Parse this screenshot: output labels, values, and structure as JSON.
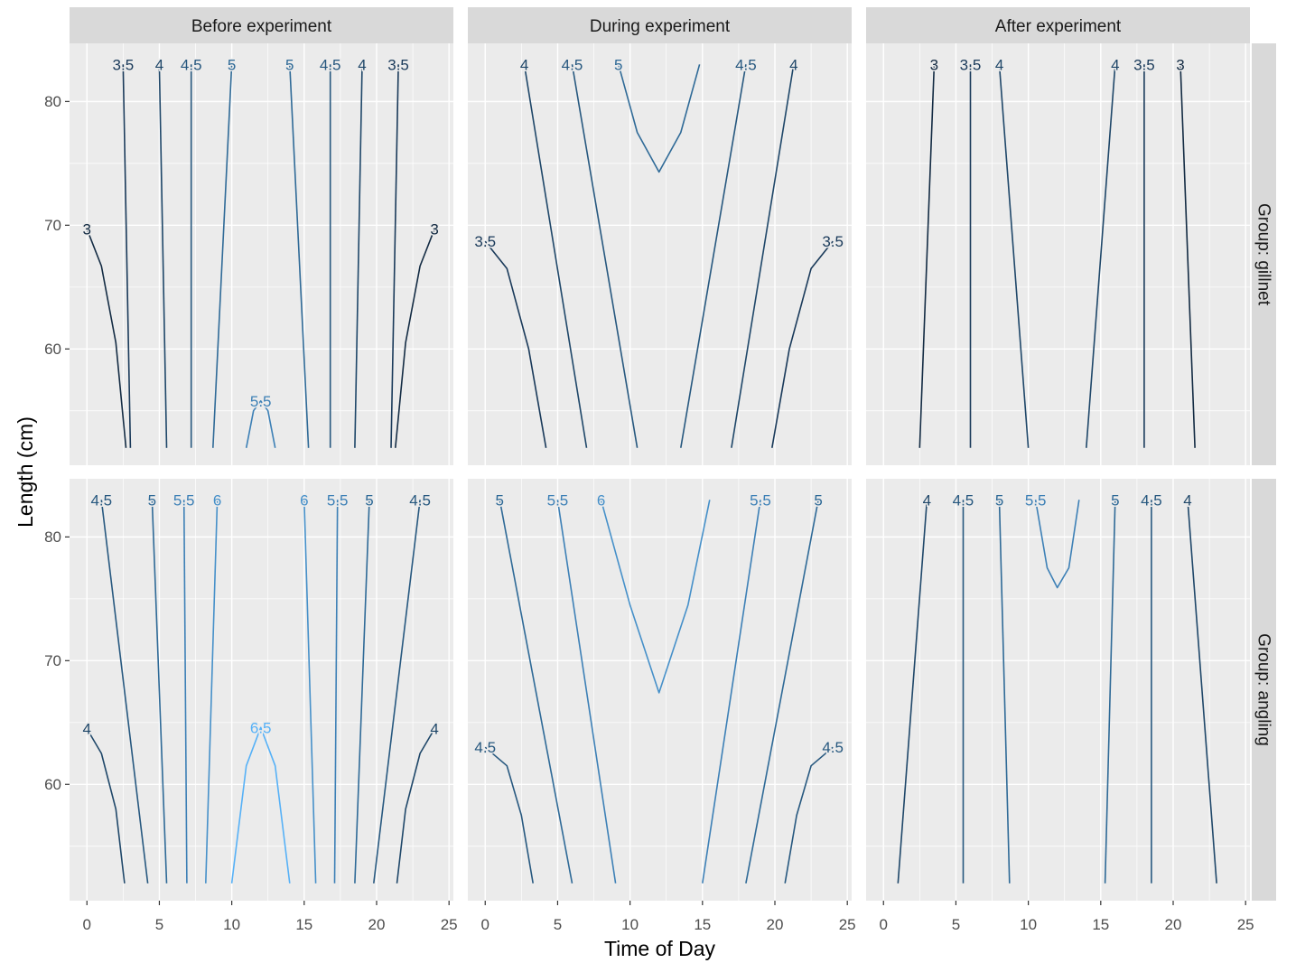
{
  "chart_data": {
    "type": "contour",
    "xlabel": "Time of Day",
    "ylabel": "Length (cm)",
    "x_ticks": [
      0,
      5,
      10,
      15,
      20,
      25
    ],
    "y_ticks": [
      60,
      70,
      80
    ],
    "xlim": [
      -1.2,
      25.3
    ],
    "ylim": [
      50.6,
      84.7
    ],
    "length_range": [
      52,
      83
    ],
    "columns": [
      "Before experiment",
      "During experiment",
      "After experiment"
    ],
    "rows": [
      "Group: gillnet",
      "Group: angling"
    ],
    "level_colors": {
      "3": "#132B43",
      "3.5": "#1a3a5a",
      "4": "#1f4769",
      "4.5": "#27587f",
      "5": "#2f6a97",
      "5.5": "#3d80b6",
      "6": "#4690c9",
      "6.5": "#56B1F7"
    },
    "panels": [
      {
        "row": 0,
        "col": 0,
        "contours": [
          {
            "level": "3",
            "label": "3",
            "points": [
              [
                0,
                69.7
              ],
              [
                1,
                66.7
              ],
              [
                2,
                60.5
              ],
              [
                2.7,
                52
              ]
            ]
          },
          {
            "level": "3",
            "label": "3",
            "points": [
              [
                24,
                69.7
              ],
              [
                23,
                66.7
              ],
              [
                22,
                60.5
              ],
              [
                21.3,
                52
              ]
            ]
          },
          {
            "level": "3.5",
            "label": "3.5",
            "points": [
              [
                2.5,
                83
              ],
              [
                3,
                52
              ]
            ]
          },
          {
            "level": "3.5",
            "label": "3.5",
            "points": [
              [
                21.5,
                83
              ],
              [
                21,
                52
              ]
            ]
          },
          {
            "level": "4",
            "label": "4",
            "points": [
              [
                5,
                83
              ],
              [
                5.5,
                52
              ]
            ]
          },
          {
            "level": "4",
            "label": "4",
            "points": [
              [
                19,
                83
              ],
              [
                18.5,
                52
              ]
            ]
          },
          {
            "level": "4.5",
            "label": "4.5",
            "points": [
              [
                7.2,
                83
              ],
              [
                7.2,
                52
              ]
            ]
          },
          {
            "level": "4.5",
            "label": "4.5",
            "points": [
              [
                16.8,
                83
              ],
              [
                16.8,
                52
              ]
            ]
          },
          {
            "level": "5",
            "label": "5",
            "points": [
              [
                10,
                83
              ],
              [
                8.7,
                52
              ]
            ]
          },
          {
            "level": "5",
            "label": "5",
            "points": [
              [
                14,
                83
              ],
              [
                15.3,
                52
              ]
            ]
          },
          {
            "level": "5.5",
            "label": "5.5",
            "points": [
              [
                11,
                52
              ],
              [
                11.5,
                55
              ],
              [
                12,
                55.8
              ],
              [
                12.5,
                55
              ],
              [
                13,
                52
              ]
            ]
          }
        ]
      },
      {
        "row": 0,
        "col": 1,
        "contours": [
          {
            "level": "3.5",
            "label": "3.5",
            "points": [
              [
                0,
                68.7
              ],
              [
                1.5,
                66.5
              ],
              [
                3,
                60
              ],
              [
                4.2,
                52
              ]
            ]
          },
          {
            "level": "3.5",
            "label": "3.5",
            "points": [
              [
                24,
                68.7
              ],
              [
                22.5,
                66.5
              ],
              [
                21,
                60
              ],
              [
                19.8,
                52
              ]
            ]
          },
          {
            "level": "4",
            "label": "4",
            "points": [
              [
                2.7,
                83
              ],
              [
                7,
                52
              ]
            ]
          },
          {
            "level": "4",
            "label": "4",
            "points": [
              [
                21.3,
                83
              ],
              [
                17,
                52
              ]
            ]
          },
          {
            "level": "4.5",
            "label": "4.5",
            "points": [
              [
                6,
                83
              ],
              [
                10.5,
                52
              ]
            ]
          },
          {
            "level": "4.5",
            "label": "4.5",
            "points": [
              [
                18,
                83
              ],
              [
                13.5,
                52
              ]
            ]
          },
          {
            "level": "5",
            "label": "5",
            "points": [
              [
                9.2,
                83
              ],
              [
                10.5,
                77.5
              ],
              [
                12,
                74.3
              ],
              [
                13.5,
                77.5
              ],
              [
                14.8,
                83
              ]
            ]
          }
        ]
      },
      {
        "row": 0,
        "col": 2,
        "contours": [
          {
            "level": "3",
            "label": "3",
            "points": [
              [
                3.5,
                83
              ],
              [
                2.5,
                52
              ]
            ]
          },
          {
            "level": "3",
            "label": "3",
            "points": [
              [
                20.5,
                83
              ],
              [
                21.5,
                52
              ]
            ]
          },
          {
            "level": "3.5",
            "label": "3.5",
            "points": [
              [
                6,
                83
              ],
              [
                6,
                52
              ]
            ]
          },
          {
            "level": "3.5",
            "label": "3.5",
            "points": [
              [
                18,
                83
              ],
              [
                18,
                52
              ]
            ]
          },
          {
            "level": "4",
            "label": "4",
            "points": [
              [
                8,
                83
              ],
              [
                10,
                52
              ]
            ]
          },
          {
            "level": "4",
            "label": "4",
            "points": [
              [
                16,
                83
              ],
              [
                14,
                52
              ]
            ]
          }
        ]
      },
      {
        "row": 1,
        "col": 0,
        "contours": [
          {
            "level": "4",
            "label": "4",
            "points": [
              [
                0,
                64.5
              ],
              [
                1,
                62.5
              ],
              [
                2,
                58
              ],
              [
                2.6,
                52
              ]
            ]
          },
          {
            "level": "4",
            "label": "4",
            "points": [
              [
                24,
                64.5
              ],
              [
                23,
                62.5
              ],
              [
                22,
                58
              ],
              [
                21.4,
                52
              ]
            ]
          },
          {
            "level": "4.5",
            "label": "4.5",
            "points": [
              [
                1,
                83
              ],
              [
                4.2,
                52
              ]
            ]
          },
          {
            "level": "4.5",
            "label": "4.5",
            "points": [
              [
                23,
                83
              ],
              [
                19.8,
                52
              ]
            ]
          },
          {
            "level": "5",
            "label": "5",
            "points": [
              [
                4.5,
                83
              ],
              [
                5.5,
                52
              ]
            ]
          },
          {
            "level": "5",
            "label": "5",
            "points": [
              [
                19.5,
                83
              ],
              [
                18.5,
                52
              ]
            ]
          },
          {
            "level": "5.5",
            "label": "5.5",
            "points": [
              [
                6.7,
                83
              ],
              [
                6.9,
                52
              ]
            ]
          },
          {
            "level": "5.5",
            "label": "5.5",
            "points": [
              [
                17.3,
                83
              ],
              [
                17.1,
                52
              ]
            ]
          },
          {
            "level": "6",
            "label": "6",
            "points": [
              [
                9,
                83
              ],
              [
                8.2,
                52
              ]
            ]
          },
          {
            "level": "6",
            "label": "6",
            "points": [
              [
                15,
                83
              ],
              [
                15.8,
                52
              ]
            ]
          },
          {
            "level": "6.5",
            "label": "6.5",
            "points": [
              [
                10,
                52
              ],
              [
                11,
                61.5
              ],
              [
                12,
                64.6
              ],
              [
                13,
                61.5
              ],
              [
                14,
                52
              ]
            ]
          }
        ]
      },
      {
        "row": 1,
        "col": 1,
        "contours": [
          {
            "level": "4.5",
            "label": "4.5",
            "points": [
              [
                0,
                63
              ],
              [
                1.5,
                61.5
              ],
              [
                2.5,
                57.5
              ],
              [
                3.3,
                52
              ]
            ]
          },
          {
            "level": "4.5",
            "label": "4.5",
            "points": [
              [
                24,
                63
              ],
              [
                22.5,
                61.5
              ],
              [
                21.5,
                57.5
              ],
              [
                20.7,
                52
              ]
            ]
          },
          {
            "level": "5",
            "label": "5",
            "points": [
              [
                1,
                83
              ],
              [
                6,
                52
              ]
            ]
          },
          {
            "level": "5",
            "label": "5",
            "points": [
              [
                23,
                83
              ],
              [
                18,
                52
              ]
            ]
          },
          {
            "level": "5.5",
            "label": "5.5",
            "points": [
              [
                5,
                83
              ],
              [
                9,
                52
              ]
            ]
          },
          {
            "level": "5.5",
            "label": "5.5",
            "points": [
              [
                19,
                83
              ],
              [
                15,
                52
              ]
            ]
          },
          {
            "level": "6",
            "label": "6",
            "points": [
              [
                8,
                83
              ],
              [
                10,
                74.5
              ],
              [
                12,
                67.4
              ],
              [
                14,
                74.5
              ],
              [
                15.5,
                83
              ]
            ]
          }
        ]
      },
      {
        "row": 1,
        "col": 2,
        "contours": [
          {
            "level": "4",
            "label": "4",
            "points": [
              [
                3,
                83
              ],
              [
                1,
                52
              ]
            ]
          },
          {
            "level": "4",
            "label": "4",
            "points": [
              [
                21,
                83
              ],
              [
                23,
                52
              ]
            ]
          },
          {
            "level": "4.5",
            "label": "4.5",
            "points": [
              [
                5.5,
                83
              ],
              [
                5.5,
                52
              ]
            ]
          },
          {
            "level": "4.5",
            "label": "4.5",
            "points": [
              [
                18.5,
                83
              ],
              [
                18.5,
                52
              ]
            ]
          },
          {
            "level": "5",
            "label": "5",
            "points": [
              [
                8,
                83
              ],
              [
                8.7,
                52
              ]
            ]
          },
          {
            "level": "5",
            "label": "5",
            "points": [
              [
                16,
                83
              ],
              [
                15.3,
                52
              ]
            ]
          },
          {
            "level": "5.5",
            "label": "5.5",
            "points": [
              [
                10.5,
                83
              ],
              [
                11.3,
                77.5
              ],
              [
                12,
                75.9
              ],
              [
                12.8,
                77.5
              ],
              [
                13.5,
                83
              ]
            ]
          }
        ]
      }
    ]
  }
}
